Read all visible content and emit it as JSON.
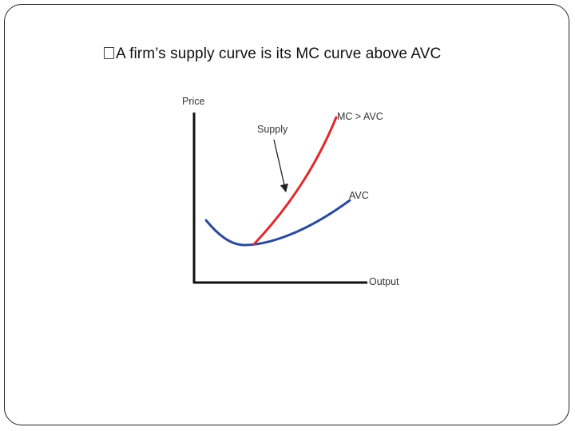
{
  "slide": {
    "bullet_text": "A firm’s supply curve is its MC curve above AVC"
  },
  "diagram": {
    "y_axis_label": "Price",
    "x_axis_label": "Output",
    "mc_label": "MC > AVC",
    "avc_label": "AVC",
    "supply_label": "Supply",
    "colors": {
      "mc_curve": "#e02a2e",
      "avc_curve": "#2c4a9a",
      "axes": "#111111",
      "text": "#333333"
    }
  }
}
